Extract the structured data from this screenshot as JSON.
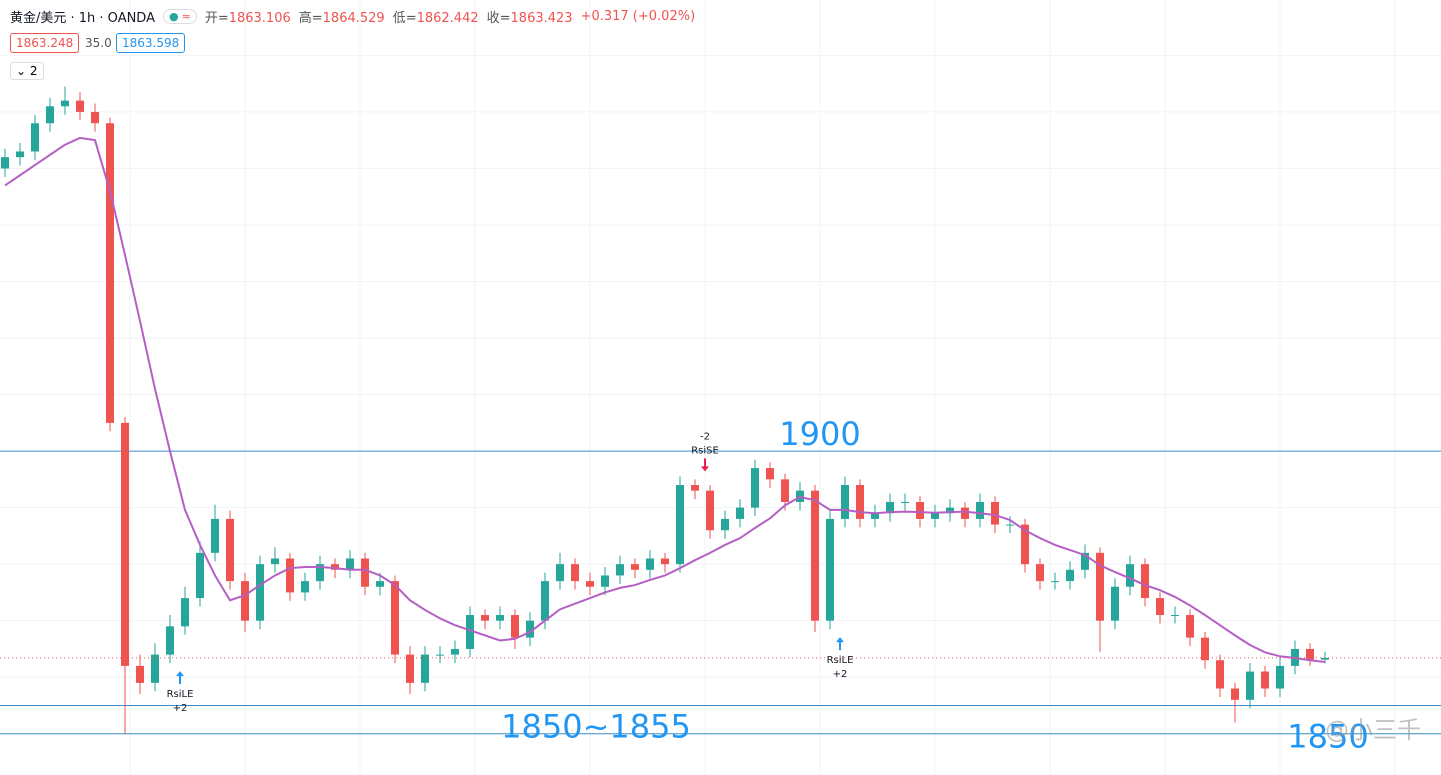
{
  "header": {
    "symbol": "黄金/美元 · 1h · OANDA",
    "open_label": "开=",
    "high_label": "高=",
    "low_label": "低=",
    "close_label": "收=",
    "change": "+0.317 (+0.02%)",
    "bid": "1863.248",
    "spread": "35.0",
    "ask": "1863.598",
    "indicator_count": "2"
  },
  "chart_data": {
    "type": "candlestick",
    "ylim": [
      1842.7,
      1979.8
    ],
    "yticks": [
      1850,
      1860,
      1870,
      1880,
      1890,
      1900,
      1910,
      1920,
      1930,
      1940,
      1950,
      1960,
      1970
    ],
    "grid": true,
    "up_color": "#26a69a",
    "down_color": "#ef5350",
    "open": [
      1950,
      1952,
      1953,
      1958,
      1961,
      1962,
      1960,
      1958,
      1905,
      1862,
      1859,
      1864,
      1869,
      1874,
      1882,
      1888,
      1877,
      1870,
      1880,
      1881,
      1875,
      1877,
      1880,
      1879,
      1881,
      1876,
      1877,
      1864,
      1859,
      1864,
      1864,
      1865,
      1871,
      1870,
      1871,
      1867,
      1870,
      1877,
      1880,
      1877,
      1876,
      1878,
      1880,
      1879,
      1881,
      1880,
      1894,
      1893,
      1886,
      1888,
      1890,
      1897,
      1895,
      1891,
      1893,
      1870,
      1888,
      1894,
      1888,
      1889,
      1891,
      1891,
      1888,
      1889,
      1890,
      1888,
      1891,
      1887,
      1887,
      1880,
      1877,
      1877,
      1879,
      1882,
      1870,
      1876,
      1880,
      1874,
      1871,
      1871,
      1867,
      1863,
      1858,
      1856,
      1861,
      1858,
      1862,
      1865,
      1863.106
    ],
    "high": [
      1953.5,
      1954.5,
      1959.5,
      1962.5,
      1964.5,
      1963.5,
      1961.5,
      1959,
      1906,
      1864,
      1866,
      1871,
      1876,
      1884,
      1890.5,
      1889.5,
      1878.5,
      1881.5,
      1883,
      1882,
      1878.5,
      1881.5,
      1881,
      1882.5,
      1882,
      1878.5,
      1878,
      1865.5,
      1865.5,
      1865.5,
      1866.5,
      1872.5,
      1872,
      1872.5,
      1872,
      1871.5,
      1878.5,
      1882,
      1881,
      1878.5,
      1879.5,
      1881.5,
      1881,
      1882.5,
      1882,
      1895.5,
      1895,
      1894,
      1889.5,
      1891.5,
      1898.5,
      1898,
      1896,
      1894.5,
      1894,
      1889.5,
      1895.5,
      1895,
      1890.5,
      1892.5,
      1892.5,
      1892,
      1890.5,
      1891.5,
      1891,
      1892.5,
      1892,
      1888.5,
      1888,
      1881,
      1878.5,
      1880.5,
      1883.5,
      1883,
      1877.5,
      1881.5,
      1881,
      1875,
      1872.5,
      1872,
      1868,
      1864,
      1859,
      1862.5,
      1862,
      1863.5,
      1866.5,
      1866,
      1864.529
    ],
    "low": [
      1948.5,
      1950.5,
      1951.5,
      1956.5,
      1959.5,
      1958.5,
      1956.5,
      1903.5,
      1850,
      1857,
      1857.5,
      1862.5,
      1867.5,
      1872.5,
      1880.5,
      1875.5,
      1868,
      1868.5,
      1878.5,
      1873.5,
      1873.5,
      1875.5,
      1877.5,
      1877.5,
      1874.5,
      1874.5,
      1862.5,
      1857,
      1857.5,
      1862.5,
      1862.5,
      1863.5,
      1868.5,
      1868.5,
      1865,
      1865.5,
      1868.5,
      1875.5,
      1875.5,
      1874.5,
      1874.5,
      1876.5,
      1877.5,
      1877.5,
      1878.5,
      1878.5,
      1891.5,
      1884.5,
      1884.5,
      1886.5,
      1888.5,
      1893.5,
      1889.5,
      1889.5,
      1868,
      1868.5,
      1886.5,
      1886.5,
      1886.5,
      1887.5,
      1889.5,
      1886.5,
      1886.5,
      1887.5,
      1886.5,
      1886.5,
      1885.5,
      1885.5,
      1878.5,
      1875.5,
      1875.5,
      1875.5,
      1877.5,
      1864.5,
      1868.5,
      1874.5,
      1872.5,
      1869.5,
      1869.5,
      1865.5,
      1861.5,
      1856.5,
      1852,
      1854.5,
      1856.5,
      1856.5,
      1860.5,
      1862,
      1862.442
    ],
    "close": [
      1952,
      1953,
      1958,
      1961,
      1962,
      1960,
      1958,
      1905,
      1862,
      1859,
      1864,
      1869,
      1874,
      1882,
      1888,
      1877,
      1870,
      1880,
      1881,
      1875,
      1877,
      1880,
      1879,
      1881,
      1876,
      1877,
      1864,
      1859,
      1864,
      1864,
      1865,
      1871,
      1870,
      1871,
      1867,
      1870,
      1877,
      1880,
      1877,
      1876,
      1878,
      1880,
      1879,
      1881,
      1880,
      1894,
      1893,
      1886,
      1888,
      1890,
      1897,
      1895,
      1891,
      1893,
      1870,
      1888,
      1894,
      1888,
      1889,
      1891,
      1891,
      1888,
      1889,
      1890,
      1888,
      1891,
      1887,
      1887,
      1880,
      1877,
      1877,
      1879,
      1882,
      1870,
      1876,
      1880,
      1874,
      1871,
      1871,
      1867,
      1863,
      1858,
      1856,
      1861,
      1858,
      1862,
      1865,
      1863.106,
      1863.423
    ],
    "ma": {
      "color": "#b45fc4",
      "values": [
        1947,
        1948.8,
        1950.6,
        1952.4,
        1954.2,
        1955.4,
        1955,
        1946,
        1934.7,
        1923,
        1911,
        1900,
        1889.6,
        1883.4,
        1878,
        1873.6,
        1874.5,
        1876.3,
        1878,
        1879.3,
        1879.5,
        1879.5,
        1879.3,
        1879,
        1879,
        1878,
        1876.3,
        1873.6,
        1871.9,
        1870.4,
        1869.2,
        1868.3,
        1867.4,
        1866.5,
        1866.8,
        1868,
        1870,
        1872,
        1873,
        1874,
        1875,
        1875.8,
        1876.3,
        1877.2,
        1878,
        1879.3,
        1880.7,
        1882,
        1883.4,
        1884.6,
        1886.4,
        1888.1,
        1890.4,
        1891.9,
        1891.3,
        1889.6,
        1889.6,
        1889.2,
        1889,
        1889.2,
        1889.3,
        1889.2,
        1889.1,
        1889.2,
        1889.3,
        1889,
        1888.7,
        1887.8,
        1886,
        1884.6,
        1883.4,
        1882.5,
        1881.6,
        1879.8,
        1878.6,
        1877.5,
        1876.3,
        1875.4,
        1874.2,
        1872.7,
        1871,
        1869.2,
        1867.4,
        1865.7,
        1864.4,
        1863.7,
        1863.4,
        1863,
        1862.7
      ]
    },
    "levels": [
      1900,
      1855,
      1850
    ],
    "level_color": "#3a8fc8",
    "annotations": [
      "1850~1855"
    ],
    "signals": [
      {
        "label": "RsiLE",
        "qty": "+2",
        "color": "#2196f3"
      },
      {
        "label": "RsiSE",
        "qty": "-2",
        "color": "#e91e4b"
      },
      {
        "label": "RsiLE",
        "qty": "+2",
        "color": "#2196f3"
      }
    ],
    "watermark": "@小三千"
  }
}
